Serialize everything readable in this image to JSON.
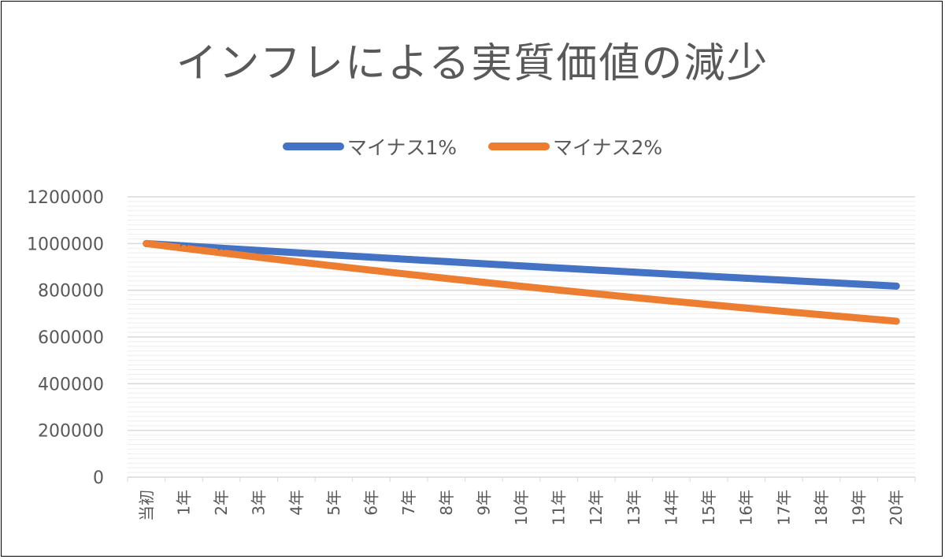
{
  "chart_data": {
    "type": "line",
    "title": "インフレによる実質価値の減少",
    "xlabel": "",
    "ylabel": "",
    "ylim": [
      0,
      1200000
    ],
    "y_ticks": [
      "0",
      "200000",
      "400000",
      "600000",
      "800000",
      "1000000",
      "1200000"
    ],
    "grid": true,
    "legend_position": "top",
    "categories": [
      "当初",
      "1年",
      "2年",
      "3年",
      "4年",
      "5年",
      "6年",
      "7年",
      "8年",
      "9年",
      "10年",
      "11年",
      "12年",
      "13年",
      "14年",
      "15年",
      "16年",
      "17年",
      "18年",
      "19年",
      "20年"
    ],
    "series": [
      {
        "name": "マイナス1%",
        "color": "#4472C4",
        "values": [
          1000000,
          990000,
          980100,
          970299,
          960596,
          950990,
          941480,
          932065,
          922745,
          913517,
          904382,
          895338,
          886385,
          877521,
          868746,
          860058,
          851458,
          842943,
          834514,
          826169,
          817907
        ]
      },
      {
        "name": "マイナス2%",
        "color": "#ED7D31",
        "values": [
          1000000,
          980000,
          960400,
          941192,
          922368,
          903921,
          885842,
          868126,
          850763,
          833748,
          817073,
          800731,
          784717,
          769022,
          753642,
          738569,
          723798,
          709322,
          695135,
          681233,
          667608
        ]
      }
    ]
  }
}
